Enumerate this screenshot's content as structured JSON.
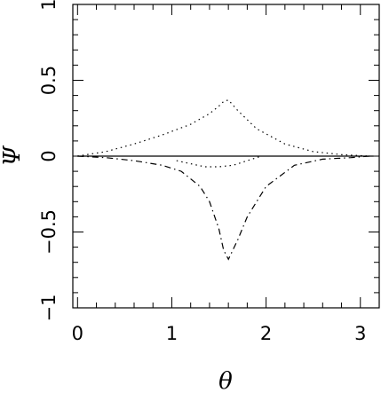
{
  "chart_data": {
    "type": "line",
    "title": "",
    "xlabel": "θ",
    "ylabel": "Ψ",
    "xlim": [
      -0.05,
      3.2
    ],
    "ylim": [
      -1,
      1
    ],
    "grid": false,
    "legend": "none",
    "x_ticks": [
      0,
      1,
      2,
      3
    ],
    "x_tick_labels": [
      "0",
      "1",
      "2",
      "3"
    ],
    "y_ticks": [
      -1,
      -0.5,
      0,
      0.5,
      1
    ],
    "y_tick_labels": [
      "−1",
      "−0.5",
      "0",
      "0.5",
      "1"
    ],
    "series": [
      {
        "style": "solid",
        "x": [
          0,
          3.14
        ],
        "values": [
          0,
          0
        ]
      },
      {
        "style": "dotted",
        "x": [
          0.0,
          0.3,
          0.6,
          0.9,
          1.2,
          1.4,
          1.5,
          1.55,
          1.6,
          1.7,
          1.9,
          2.2,
          2.5,
          2.8,
          3.1
        ],
        "values": [
          0.0,
          0.03,
          0.08,
          0.14,
          0.21,
          0.28,
          0.33,
          0.36,
          0.37,
          0.3,
          0.18,
          0.08,
          0.03,
          0.01,
          0.0
        ]
      },
      {
        "style": "dash-dot",
        "x": [
          0.0,
          0.3,
          0.6,
          0.9,
          1.1,
          1.3,
          1.4,
          1.5,
          1.55,
          1.6,
          1.7,
          1.8,
          2.0,
          2.3,
          2.6,
          2.9,
          3.1
        ],
        "values": [
          0.0,
          -0.01,
          -0.03,
          -0.06,
          -0.1,
          -0.2,
          -0.3,
          -0.48,
          -0.62,
          -0.68,
          -0.55,
          -0.4,
          -0.2,
          -0.06,
          -0.02,
          -0.01,
          0.0
        ]
      },
      {
        "style": "dotted",
        "x": [
          1.05,
          1.2,
          1.35,
          1.5,
          1.65,
          1.8,
          1.95
        ],
        "values": [
          -0.03,
          -0.05,
          -0.07,
          -0.07,
          -0.06,
          -0.03,
          0.0
        ]
      }
    ]
  }
}
